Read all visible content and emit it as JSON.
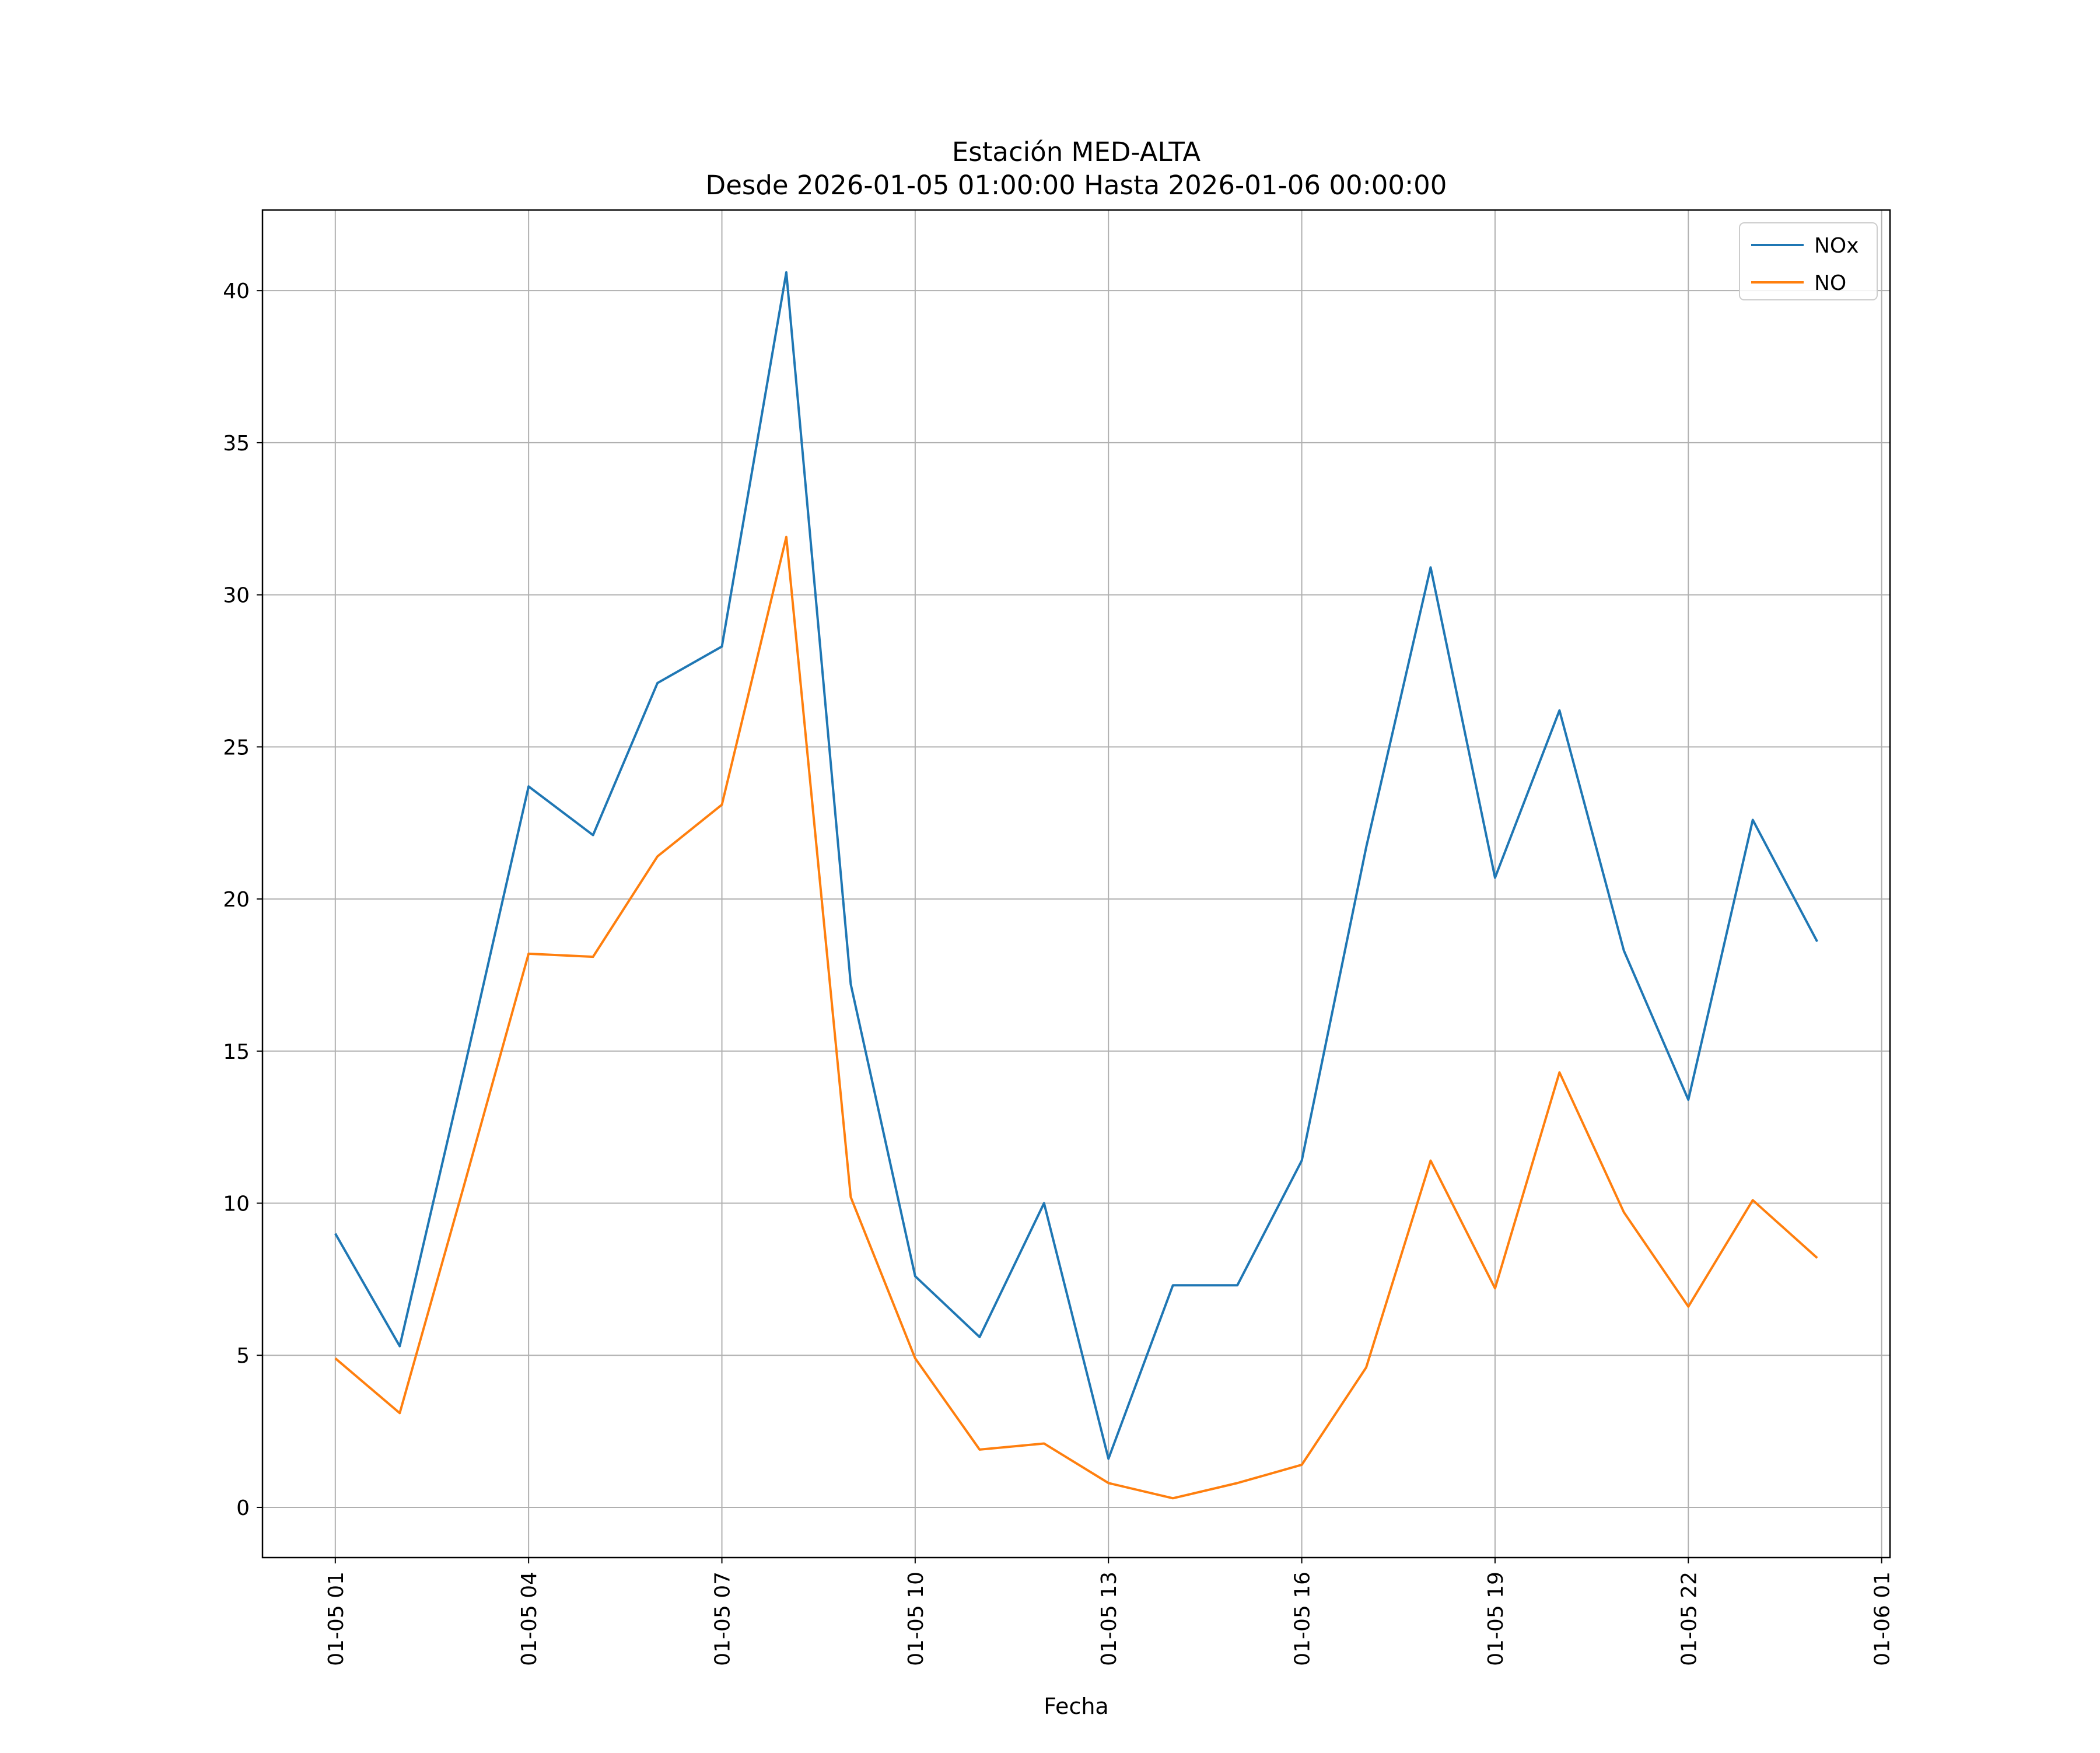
{
  "chart_data": {
    "type": "line",
    "title": "Estación MED-ALTA",
    "subtitle": "Desde 2026-01-05 01:00:00 Hasta 2026-01-06 00:00:00",
    "xlabel": "Fecha",
    "ylabel": "",
    "x": [
      "01-05 01",
      "01-05 02",
      "01-05 03",
      "01-05 04",
      "01-05 05",
      "01-05 06",
      "01-05 07",
      "01-05 08",
      "01-05 09",
      "01-05 10",
      "01-05 11",
      "01-05 12",
      "01-05 13",
      "01-05 14",
      "01-05 15",
      "01-05 16",
      "01-05 17",
      "01-05 18",
      "01-05 19",
      "01-05 20",
      "01-05 21",
      "01-05 22",
      "01-05 23",
      "01-06 00"
    ],
    "x_ticks": [
      {
        "label": "01-05 01",
        "hour": 0
      },
      {
        "label": "01-05 04",
        "hour": 3
      },
      {
        "label": "01-05 07",
        "hour": 6
      },
      {
        "label": "01-05 10",
        "hour": 9
      },
      {
        "label": "01-05 13",
        "hour": 12
      },
      {
        "label": "01-05 16",
        "hour": 15
      },
      {
        "label": "01-05 19",
        "hour": 18
      },
      {
        "label": "01-05 22",
        "hour": 21
      },
      {
        "label": "01-06 01",
        "hour": 24
      }
    ],
    "xlim": [
      -1.13,
      24.13
    ],
    "y_ticks": [
      0,
      5,
      10,
      15,
      20,
      25,
      30,
      35,
      40
    ],
    "ylim": [
      -1.65,
      42.65
    ],
    "grid": true,
    "legend_position": "top-right",
    "series": [
      {
        "name": "NOx",
        "color": "#1f77b4",
        "values": [
          9.0,
          5.3,
          14.4,
          23.7,
          22.1,
          27.1,
          28.3,
          40.6,
          17.2,
          7.6,
          5.6,
          10.0,
          1.6,
          7.3,
          7.3,
          11.4,
          21.7,
          30.9,
          20.7,
          26.2,
          18.3,
          13.4,
          22.6,
          18.6
        ]
      },
      {
        "name": "NO",
        "color": "#ff7f0e",
        "values": [
          4.9,
          3.1,
          10.6,
          18.2,
          18.1,
          21.4,
          23.1,
          31.9,
          10.2,
          4.9,
          1.9,
          2.1,
          0.8,
          0.3,
          0.8,
          1.4,
          4.6,
          11.4,
          7.2,
          14.3,
          9.7,
          6.6,
          10.1,
          8.2
        ]
      }
    ]
  }
}
